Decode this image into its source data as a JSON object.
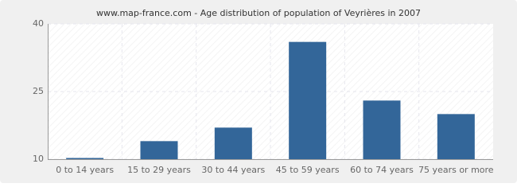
{
  "chart_data": {
    "type": "bar",
    "title": "www.map-france.com - Age distribution of population of Veyrières in 2007",
    "categories": [
      "0 to 14 years",
      "15 to 29 years",
      "30 to 44 years",
      "45 to 59 years",
      "60 to 74 years",
      "75 years or more"
    ],
    "values": [
      10,
      14,
      17,
      36,
      23,
      20
    ],
    "color": "#336699",
    "ylim": [
      10,
      40
    ],
    "yticks": [
      10,
      25,
      40
    ],
    "grid": true
  }
}
